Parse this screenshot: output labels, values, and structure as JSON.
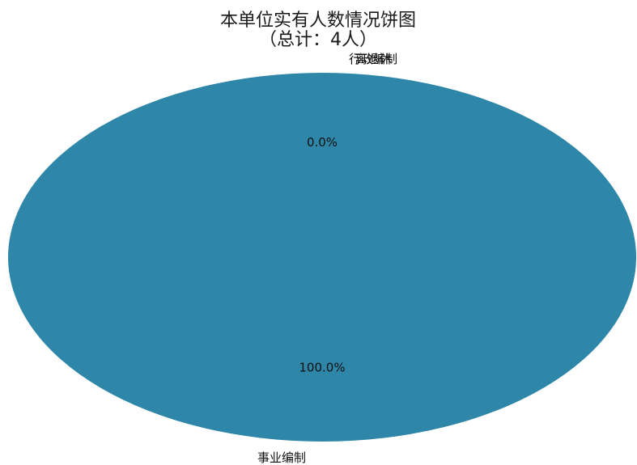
{
  "chart_data": {
    "type": "pie",
    "title": "本单位实有人数情况饼图",
    "subtitle": "（总计：4人）",
    "categories": [
      "事业编制",
      "行政编制",
      "离退休"
    ],
    "values": [
      4,
      0,
      0
    ],
    "percent_labels": [
      "100.0%",
      "0.0%",
      "0.0%"
    ],
    "colors": [
      "#2e86a8",
      "#e08a2e",
      "#8fbc5a"
    ],
    "legend": "none"
  }
}
